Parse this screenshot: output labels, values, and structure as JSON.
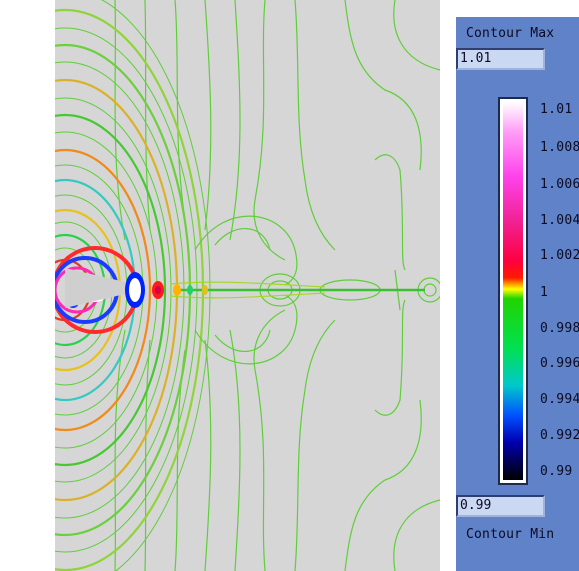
{
  "panel": {
    "max_label": "Contour Max",
    "max_value": "1.01",
    "min_label": "Contour Min",
    "min_value": "0.99",
    "ticks": [
      "1.01",
      "1.008",
      "1.006",
      "1.004",
      "1.002",
      "1",
      "0.998",
      "0.996",
      "0.994",
      "0.992",
      "0.99"
    ]
  },
  "colors": {
    "panel_bg": "#5f82c8",
    "plot_bg": "#d6d6d6",
    "contour_green": "#57c83a"
  }
}
